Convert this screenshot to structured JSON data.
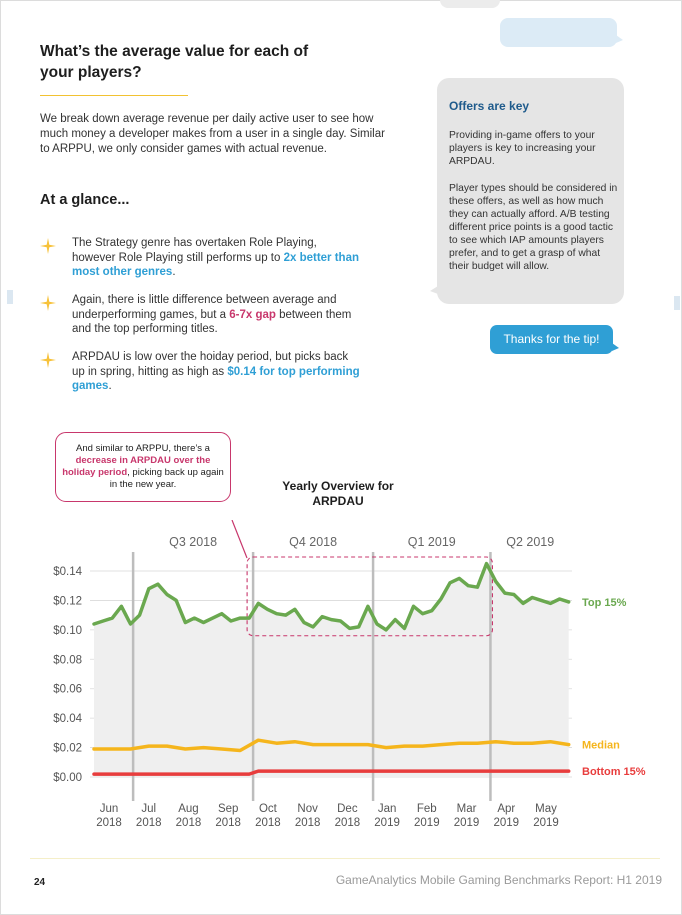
{
  "colors": {
    "accent_blue": "#2f9fd5",
    "accent_pink": "#c8376c",
    "top15": "#6aa84f",
    "median": "#f5b51c",
    "bottom15": "#e83d3d",
    "rule_yellow": "#f2c232"
  },
  "heading": "What’s the average value for each of your players?",
  "intro": "We break down average revenue per daily active user to see how much money a developer makes from a user in a single day. Similar to ARPPU, we only consider games with actual revenue.",
  "glance_title": "At a glance...",
  "bullets": [
    {
      "icon": "sparkle-icon",
      "text_before": "The Strategy genre has overtaken Role Playing, however Role Playing still performs up to ",
      "highlight": "2x better than most other genres",
      "text_after": "."
    },
    {
      "icon": "sparkle-icon",
      "text_before": "Again, there is little difference between average and underperforming games, but a ",
      "highlight": "6-7x gap",
      "text_after": " between them and the top performing titles."
    },
    {
      "icon": "sparkle-icon",
      "text_before": "ARPDAU is low over the hoiday period, but picks back up in spring, hitting as high as ",
      "highlight": "$0.14 for top performing games",
      "text_after": "."
    }
  ],
  "sidebar": {
    "title": "Offers are key",
    "para1": "Providing in-game offers to your players is key to increasing your ARPDAU.",
    "para2": "Player types should be considered in these offers, as well as how much they can actually afford. A/B testing different price points is a good tactic to see which IAP amounts players prefer, and to get a grasp of what their budget will allow.",
    "reply": "Thanks for the tip!"
  },
  "annotation": {
    "before": "And similar to ARPPU, there’s a ",
    "highlight": "decrease in ARPDAU over the holiday period",
    "after": ", picking back up again in the new year."
  },
  "chart_title": "Yearly Overview for ARPDAU",
  "chart_data": {
    "type": "area",
    "title": "Yearly Overview for ARPDAU",
    "quarters": [
      "Q3 2018",
      "Q4 2018",
      "Q1 2019",
      "Q2 2019"
    ],
    "x_month_labels": [
      [
        "Jun",
        "2018"
      ],
      [
        "Jul",
        "2018"
      ],
      [
        "Aug",
        "2018"
      ],
      [
        "Sep",
        "2018"
      ],
      [
        "Oct",
        "2018"
      ],
      [
        "Nov",
        "2018"
      ],
      [
        "Dec",
        "2018"
      ],
      [
        "Jan",
        "2019"
      ],
      [
        "Feb",
        "2019"
      ],
      [
        "Mar",
        "2019"
      ],
      [
        "Apr",
        "2019"
      ],
      [
        "May",
        "2019"
      ]
    ],
    "y_ticks": [
      "$0.00",
      "$0.02",
      "$0.04",
      "$0.06",
      "$0.08",
      "$0.10",
      "$0.12",
      "$0.14"
    ],
    "ylim": [
      0,
      0.14
    ],
    "x_start": "2018-06-01",
    "x_end": "2019-06-01",
    "quarter_boundaries": [
      "2018-07-01",
      "2018-10-01",
      "2019-01-01",
      "2019-04-01"
    ],
    "highlight_range": [
      "2018-10-01",
      "2019-04-01"
    ],
    "series": [
      {
        "name": "Top 15%",
        "color": "#6aa84f",
        "values": [
          [
            "2018-06-01",
            0.104
          ],
          [
            "2018-06-08",
            0.106
          ],
          [
            "2018-06-15",
            0.108
          ],
          [
            "2018-06-22",
            0.116
          ],
          [
            "2018-06-29",
            0.104
          ],
          [
            "2018-07-06",
            0.11
          ],
          [
            "2018-07-13",
            0.128
          ],
          [
            "2018-07-20",
            0.131
          ],
          [
            "2018-07-27",
            0.124
          ],
          [
            "2018-08-03",
            0.12
          ],
          [
            "2018-08-10",
            0.105
          ],
          [
            "2018-08-17",
            0.108
          ],
          [
            "2018-08-24",
            0.105
          ],
          [
            "2018-08-31",
            0.108
          ],
          [
            "2018-09-07",
            0.111
          ],
          [
            "2018-09-14",
            0.106
          ],
          [
            "2018-09-21",
            0.108
          ],
          [
            "2018-09-28",
            0.108
          ],
          [
            "2018-10-05",
            0.118
          ],
          [
            "2018-10-12",
            0.114
          ],
          [
            "2018-10-19",
            0.111
          ],
          [
            "2018-10-26",
            0.11
          ],
          [
            "2018-11-02",
            0.114
          ],
          [
            "2018-11-09",
            0.105
          ],
          [
            "2018-11-16",
            0.102
          ],
          [
            "2018-11-23",
            0.109
          ],
          [
            "2018-11-30",
            0.107
          ],
          [
            "2018-12-07",
            0.106
          ],
          [
            "2018-12-14",
            0.101
          ],
          [
            "2018-12-21",
            0.102
          ],
          [
            "2018-12-28",
            0.116
          ],
          [
            "2019-01-04",
            0.104
          ],
          [
            "2019-01-11",
            0.1
          ],
          [
            "2019-01-18",
            0.107
          ],
          [
            "2019-01-25",
            0.101
          ],
          [
            "2019-02-01",
            0.116
          ],
          [
            "2019-02-08",
            0.111
          ],
          [
            "2019-02-15",
            0.113
          ],
          [
            "2019-02-22",
            0.121
          ],
          [
            "2019-03-01",
            0.132
          ],
          [
            "2019-03-08",
            0.135
          ],
          [
            "2019-03-15",
            0.13
          ],
          [
            "2019-03-22",
            0.129
          ],
          [
            "2019-03-29",
            0.145
          ],
          [
            "2019-04-05",
            0.133
          ],
          [
            "2019-04-12",
            0.125
          ],
          [
            "2019-04-19",
            0.124
          ],
          [
            "2019-04-26",
            0.118
          ],
          [
            "2019-05-03",
            0.122
          ],
          [
            "2019-05-10",
            0.12
          ],
          [
            "2019-05-17",
            0.118
          ],
          [
            "2019-05-24",
            0.121
          ],
          [
            "2019-05-31",
            0.119
          ]
        ]
      },
      {
        "name": "Median",
        "color": "#f5b51c",
        "values": [
          [
            "2018-06-01",
            0.019
          ],
          [
            "2018-06-15",
            0.019
          ],
          [
            "2018-06-29",
            0.019
          ],
          [
            "2018-07-13",
            0.021
          ],
          [
            "2018-07-27",
            0.021
          ],
          [
            "2018-08-10",
            0.019
          ],
          [
            "2018-08-24",
            0.02
          ],
          [
            "2018-09-07",
            0.019
          ],
          [
            "2018-09-21",
            0.018
          ],
          [
            "2018-10-05",
            0.025
          ],
          [
            "2018-10-19",
            0.023
          ],
          [
            "2018-11-02",
            0.024
          ],
          [
            "2018-11-16",
            0.022
          ],
          [
            "2018-11-30",
            0.022
          ],
          [
            "2018-12-14",
            0.022
          ],
          [
            "2018-12-28",
            0.022
          ],
          [
            "2019-01-11",
            0.02
          ],
          [
            "2019-01-25",
            0.021
          ],
          [
            "2019-02-08",
            0.021
          ],
          [
            "2019-02-22",
            0.022
          ],
          [
            "2019-03-08",
            0.023
          ],
          [
            "2019-03-22",
            0.023
          ],
          [
            "2019-04-05",
            0.024
          ],
          [
            "2019-04-19",
            0.023
          ],
          [
            "2019-05-03",
            0.023
          ],
          [
            "2019-05-17",
            0.024
          ],
          [
            "2019-05-31",
            0.022
          ]
        ]
      },
      {
        "name": "Bottom 15%",
        "color": "#e83d3d",
        "values": [
          [
            "2018-06-01",
            0.002
          ],
          [
            "2018-07-01",
            0.002
          ],
          [
            "2018-08-01",
            0.002
          ],
          [
            "2018-09-01",
            0.002
          ],
          [
            "2018-09-28",
            0.002
          ],
          [
            "2018-10-05",
            0.004
          ],
          [
            "2018-11-01",
            0.004
          ],
          [
            "2018-12-01",
            0.004
          ],
          [
            "2019-01-01",
            0.004
          ],
          [
            "2019-02-01",
            0.004
          ],
          [
            "2019-03-01",
            0.004
          ],
          [
            "2019-04-01",
            0.004
          ],
          [
            "2019-05-01",
            0.004
          ],
          [
            "2019-05-31",
            0.004
          ]
        ]
      }
    ]
  },
  "footer": {
    "page_number": "24",
    "report": "GameAnalytics Mobile Gaming Benchmarks Report: H1 2019"
  }
}
